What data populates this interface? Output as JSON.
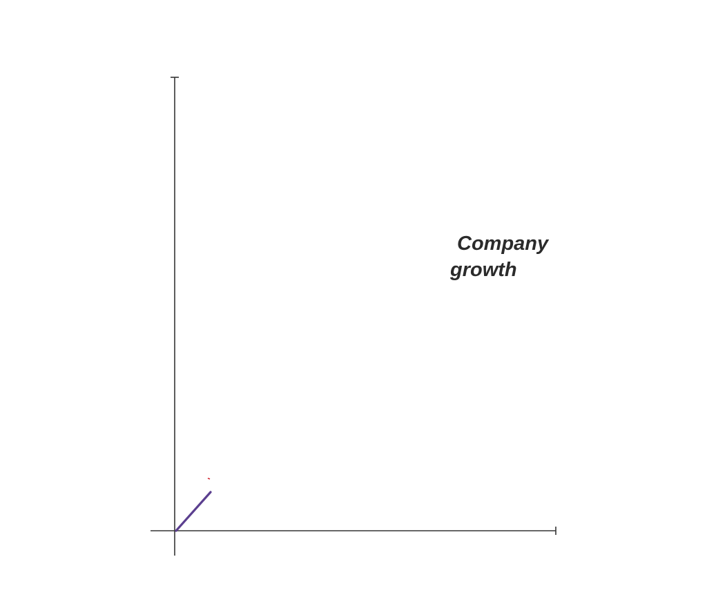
{
  "label": {
    "lines": [
      "Company",
      "growth"
    ]
  }
}
